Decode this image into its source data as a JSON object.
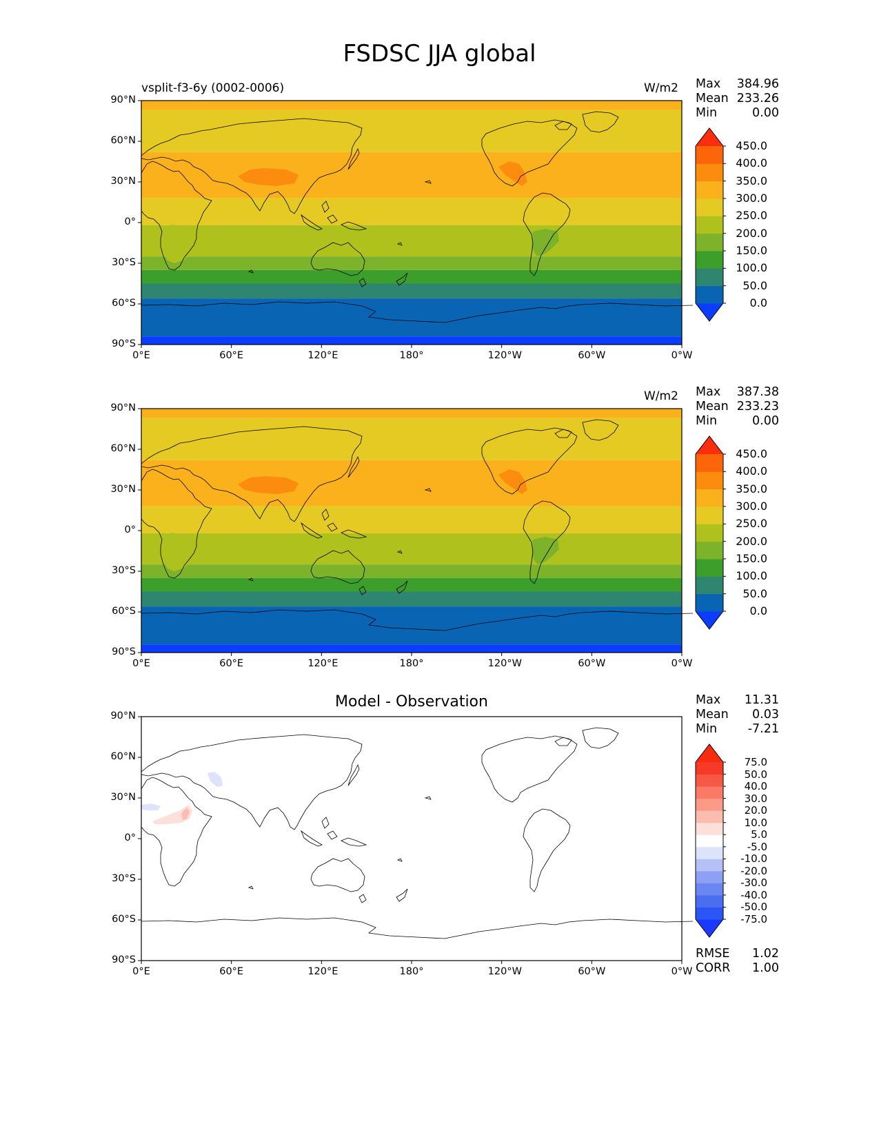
{
  "title": "FSDSC JJA global",
  "panels": [
    {
      "id": "test",
      "left_title": "vsplit-f3-6y (0002-0006)",
      "center_title": "",
      "units": "W/m2",
      "stats": [
        {
          "label": "Max",
          "value": "384.96"
        },
        {
          "label": "Mean",
          "value": "233.26"
        },
        {
          "label": "Min",
          "value": "0.00"
        }
      ],
      "colorbar": {
        "levels": [
          "0.0",
          "50.0",
          "100.0",
          "150.0",
          "200.0",
          "250.0",
          "300.0",
          "350.0",
          "400.0",
          "450.0"
        ],
        "colors": [
          "#0a3dff",
          "#0a64b4",
          "#2e8670",
          "#3c9e2b",
          "#7db32b",
          "#afc11c",
          "#e5ca24",
          "#fbb11c",
          "#fc8c0e",
          "#fd650a",
          "#fd2e0d"
        ]
      },
      "bands": [
        {
          "lat_top": 90,
          "lat_bottom": 83,
          "color": "#fbb11c"
        },
        {
          "lat_top": 83,
          "lat_bottom": 52,
          "color": "#e5ca24"
        },
        {
          "lat_top": 52,
          "lat_bottom": 18,
          "color": "#fbb11c"
        },
        {
          "lat_top": 18,
          "lat_bottom": -2,
          "color": "#e5ca24"
        },
        {
          "lat_top": -2,
          "lat_bottom": -25,
          "color": "#afc11c"
        },
        {
          "lat_top": -25,
          "lat_bottom": -35,
          "color": "#7db32b"
        },
        {
          "lat_top": -35,
          "lat_bottom": -45,
          "color": "#3c9e2b"
        },
        {
          "lat_top": -45,
          "lat_bottom": -56,
          "color": "#2e8670"
        },
        {
          "lat_top": -56,
          "lat_bottom": -84,
          "color": "#0a64b4"
        },
        {
          "lat_top": -84,
          "lat_bottom": -90,
          "color": "#0a3dff"
        }
      ]
    },
    {
      "id": "reference",
      "left_title": "",
      "center_title": "",
      "units": "W/m2",
      "stats": [
        {
          "label": "Max",
          "value": "387.38"
        },
        {
          "label": "Mean",
          "value": "233.23"
        },
        {
          "label": "Min",
          "value": "0.00"
        }
      ],
      "colorbar": {
        "levels": [
          "0.0",
          "50.0",
          "100.0",
          "150.0",
          "200.0",
          "250.0",
          "300.0",
          "350.0",
          "400.0",
          "450.0"
        ],
        "colors": [
          "#0a3dff",
          "#0a64b4",
          "#2e8670",
          "#3c9e2b",
          "#7db32b",
          "#afc11c",
          "#e5ca24",
          "#fbb11c",
          "#fc8c0e",
          "#fd650a",
          "#fd2e0d"
        ]
      },
      "bands": [
        {
          "lat_top": 90,
          "lat_bottom": 83,
          "color": "#fbb11c"
        },
        {
          "lat_top": 83,
          "lat_bottom": 52,
          "color": "#e5ca24"
        },
        {
          "lat_top": 52,
          "lat_bottom": 18,
          "color": "#fbb11c"
        },
        {
          "lat_top": 18,
          "lat_bottom": -2,
          "color": "#e5ca24"
        },
        {
          "lat_top": -2,
          "lat_bottom": -25,
          "color": "#afc11c"
        },
        {
          "lat_top": -25,
          "lat_bottom": -35,
          "color": "#7db32b"
        },
        {
          "lat_top": -35,
          "lat_bottom": -45,
          "color": "#3c9e2b"
        },
        {
          "lat_top": -45,
          "lat_bottom": -56,
          "color": "#2e8670"
        },
        {
          "lat_top": -56,
          "lat_bottom": -84,
          "color": "#0a64b4"
        },
        {
          "lat_top": -84,
          "lat_bottom": -90,
          "color": "#0a3dff"
        }
      ]
    },
    {
      "id": "difference",
      "left_title": "",
      "center_title": "Model - Observation",
      "units": "",
      "stats": [
        {
          "label": "Max",
          "value": "11.31"
        },
        {
          "label": "Mean",
          "value": "0.03"
        },
        {
          "label": "Min",
          "value": "-7.21"
        }
      ],
      "colorbar": {
        "levels": [
          "-75.0",
          "-50.0",
          "-40.0",
          "-30.0",
          "-20.0",
          "-10.0",
          "-5.0",
          "5.0",
          "10.0",
          "20.0",
          "30.0",
          "40.0",
          "50.0",
          "75.0"
        ],
        "colors": [
          "#1a3bff",
          "#2c55f6",
          "#4a6ef0",
          "#6a86f1",
          "#8ea0f3",
          "#b4c0f6",
          "#dde3fb",
          "#ffffff",
          "#fde0da",
          "#fcbcae",
          "#fc9a88",
          "#fa7a66",
          "#f75846",
          "#f73a28",
          "#f62b10"
        ]
      },
      "rmse": {
        "label": "RMSE",
        "value": "1.02"
      },
      "corr": {
        "label": "CORR",
        "value": "1.00"
      }
    }
  ],
  "axes": {
    "lon_ticks": [
      "0°E",
      "60°E",
      "120°E",
      "180°",
      "120°W",
      "60°W",
      "0°W"
    ],
    "lat_ticks": [
      "90°N",
      "60°N",
      "30°N",
      "0°",
      "30°S",
      "60°S",
      "90°S"
    ]
  },
  "chart_data": {
    "type": "heatmap",
    "variable": "FSDSC",
    "season": "JJA",
    "region": "global",
    "projection": "plate-carree, central longitude 180",
    "x_range": [
      0,
      360
    ],
    "y_range": [
      -90,
      90
    ],
    "grid": false
  }
}
